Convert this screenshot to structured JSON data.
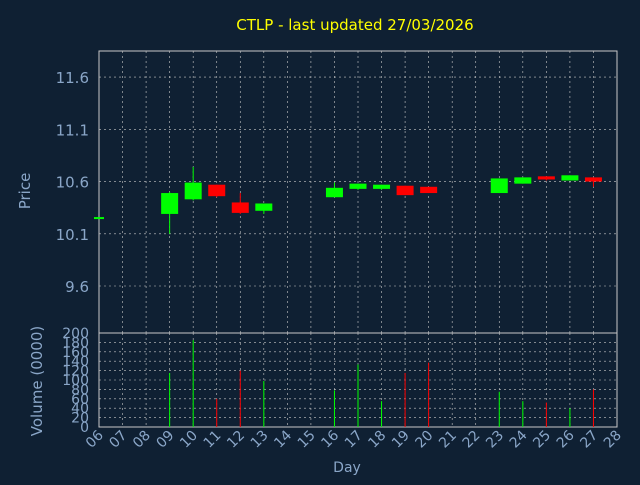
{
  "chart_data": {
    "type": "candlestick",
    "title": "CTLP - last updated 27/03/2026",
    "colors": {
      "background": "#0f2033",
      "plot_border": "#c8c8c8",
      "grid": "#c8c8c8",
      "title": "#ffff00",
      "axis_label": "#8aa6c8",
      "tick_label": "#8aa6c8",
      "up": "#00ff00",
      "down": "#ff0000"
    },
    "price_panel": {
      "ylabel": "Price",
      "ylim": [
        9.15,
        11.85
      ],
      "y_ticks": [
        "9.6",
        "10.1",
        "10.6",
        "11.1",
        "11.6"
      ],
      "grid": true
    },
    "volume_panel": {
      "ylabel": "Volume (0000)",
      "ylim": [
        0,
        200
      ],
      "y_ticks": [
        "0",
        "20",
        "40",
        "60",
        "80",
        "100",
        "120",
        "140",
        "160",
        "180",
        "200"
      ],
      "grid": true
    },
    "xlabel": "Day",
    "x_ticks": [
      "06",
      "07",
      "08",
      "09",
      "10",
      "11",
      "12",
      "13",
      "14",
      "15",
      "16",
      "17",
      "18",
      "19",
      "20",
      "21",
      "22",
      "23",
      "24",
      "25",
      "26",
      "27",
      "28"
    ],
    "candles": [
      {
        "day": "06",
        "open": 10.26,
        "close": 10.26,
        "high": 10.26,
        "low": 10.26,
        "volume": 0
      },
      {
        "day": "09",
        "open": 10.29,
        "close": 10.49,
        "high": 10.5,
        "low": 10.1,
        "volume": 115
      },
      {
        "day": "10",
        "open": 10.43,
        "close": 10.59,
        "high": 10.74,
        "low": 10.42,
        "volume": 185
      },
      {
        "day": "11",
        "open": 10.57,
        "close": 10.46,
        "high": 10.57,
        "low": 10.45,
        "volume": 60
      },
      {
        "day": "12",
        "open": 10.4,
        "close": 10.3,
        "high": 10.49,
        "low": 10.29,
        "volume": 120
      },
      {
        "day": "13",
        "open": 10.32,
        "close": 10.39,
        "high": 10.39,
        "low": 10.29,
        "volume": 98
      },
      {
        "day": "16",
        "open": 10.45,
        "close": 10.54,
        "high": 10.59,
        "low": 10.45,
        "volume": 78
      },
      {
        "day": "17",
        "open": 10.53,
        "close": 10.58,
        "high": 10.58,
        "low": 10.52,
        "volume": 133
      },
      {
        "day": "18",
        "open": 10.53,
        "close": 10.57,
        "high": 10.57,
        "low": 10.52,
        "volume": 55
      },
      {
        "day": "19",
        "open": 10.56,
        "close": 10.47,
        "high": 10.56,
        "low": 10.47,
        "volume": 115
      },
      {
        "day": "20",
        "open": 10.55,
        "close": 10.49,
        "high": 10.55,
        "low": 10.49,
        "volume": 137
      },
      {
        "day": "23",
        "open": 10.49,
        "close": 10.63,
        "high": 10.63,
        "low": 10.49,
        "volume": 75
      },
      {
        "day": "24",
        "open": 10.58,
        "close": 10.64,
        "high": 10.64,
        "low": 10.58,
        "volume": 55
      },
      {
        "day": "25",
        "open": 10.65,
        "close": 10.62,
        "high": 10.65,
        "low": 10.61,
        "volume": 52
      },
      {
        "day": "26",
        "open": 10.61,
        "close": 10.66,
        "high": 10.66,
        "low": 10.61,
        "volume": 40
      },
      {
        "day": "27",
        "open": 10.64,
        "close": 10.6,
        "high": 10.64,
        "low": 10.55,
        "volume": 80
      }
    ]
  }
}
